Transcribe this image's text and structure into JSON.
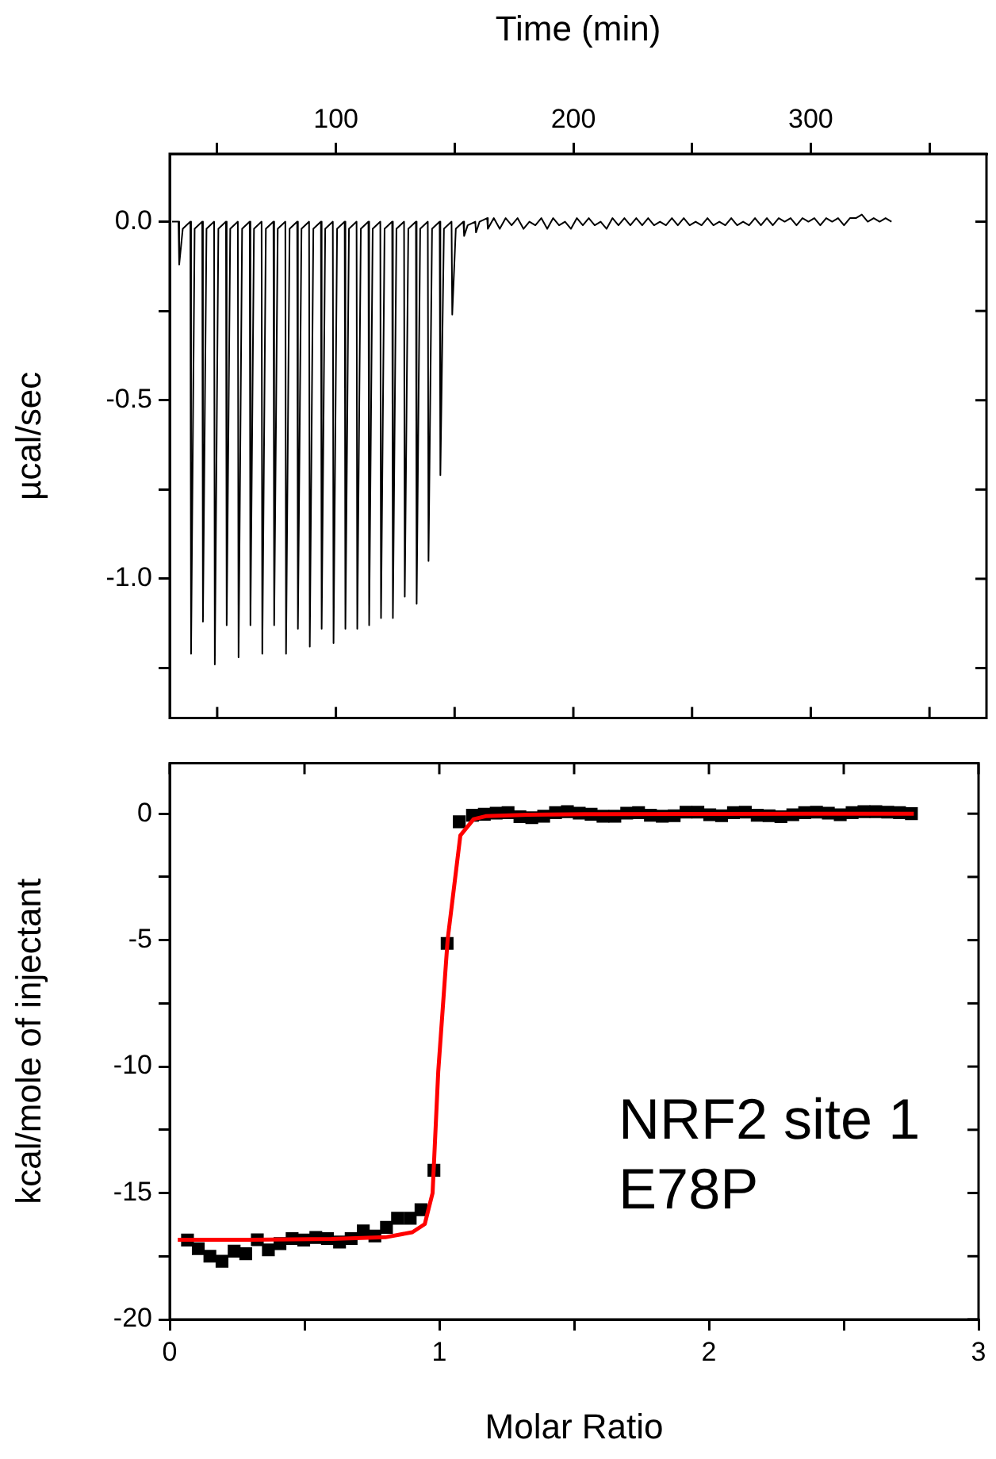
{
  "chart_data": [
    {
      "type": "line",
      "xlabel": "Time (min)",
      "ylabel": "µcal/sec",
      "xlim": [
        30,
        374
      ],
      "xticks": [
        {
          "value": 50,
          "label": null
        },
        100,
        {
          "value": 150,
          "label": null
        },
        200,
        {
          "value": 250,
          "label": null
        },
        300,
        {
          "value": 350,
          "label": null
        }
      ],
      "ylim": [
        -1.39,
        0.19
      ],
      "yticks": [
        {
          "value": 0,
          "label": "0.0"
        },
        {
          "value": -0.25,
          "label": null
        },
        {
          "value": -0.5,
          "label": "-0.5"
        },
        {
          "value": -0.75,
          "label": null
        },
        {
          "value": -1,
          "label": "-1.0"
        },
        {
          "value": -1.25,
          "label": null
        }
      ],
      "series": [
        {
          "color": "#000000",
          "marker": "none",
          "x": [
            31,
            33.7,
            34,
            35.5,
            38.7,
            39,
            40.5,
            43.7,
            44,
            45.5,
            48.7,
            49,
            50.5,
            53.7,
            54,
            55.5,
            58.7,
            59,
            60.5,
            63.7,
            64,
            65.5,
            68.7,
            69,
            70.5,
            73.7,
            74,
            75.5,
            78.7,
            79,
            80.5,
            83.7,
            84,
            85.5,
            88.7,
            89,
            90.5,
            93.7,
            94,
            95.5,
            98.7,
            99,
            100.5,
            103.7,
            104,
            105.5,
            108.7,
            109,
            110.5,
            113.7,
            114,
            115.5,
            118.7,
            119,
            120.5,
            123.7,
            124,
            125.5,
            128.7,
            129,
            130.5,
            133.7,
            134,
            135.5,
            138.7,
            139,
            140.5,
            143.7,
            144,
            145.5,
            148.7,
            149,
            150.5,
            153.7,
            154,
            155.5,
            158.7,
            159,
            160.5,
            163.7,
            164,
            166.5,
            169,
            171.5,
            174,
            176.5,
            179,
            181.5,
            184,
            186.5,
            189,
            191.5,
            194,
            196.5,
            199,
            201.5,
            204,
            206.5,
            209,
            211.5,
            214,
            216.5,
            219,
            221.5,
            224,
            226.5,
            229,
            231.5,
            234,
            236.5,
            239,
            241.5,
            244,
            246.5,
            249,
            251.5,
            254,
            256.5,
            259,
            261.5,
            264,
            266.5,
            269,
            271.5,
            274,
            276.5,
            279,
            281.5,
            284,
            286.5,
            289,
            291.5,
            294,
            296.5,
            299,
            301.5,
            304,
            306.5,
            309,
            311.5,
            314,
            316.5,
            319,
            321.5,
            324,
            326.5,
            329,
            331.5,
            334
          ],
          "values": [
            0,
            0,
            -0.12,
            -0.02,
            0,
            -1.21,
            -0.02,
            0,
            -1.12,
            -0.02,
            0,
            -1.24,
            -0.02,
            0,
            -1.13,
            -0.02,
            0,
            -1.22,
            -0.02,
            0,
            -1.13,
            -0.02,
            0,
            -1.21,
            -0.02,
            0,
            -1.13,
            -0.02,
            0,
            -1.21,
            -0.02,
            0,
            -1.14,
            -0.02,
            0,
            -1.19,
            -0.02,
            0,
            -1.14,
            -0.02,
            0,
            -1.18,
            -0.02,
            0,
            -1.14,
            -0.02,
            0,
            -1.14,
            -0.02,
            0,
            -1.13,
            -0.02,
            0,
            -1.11,
            -0.02,
            0,
            -1.11,
            -0.02,
            0,
            -1.05,
            -0.02,
            0,
            -1.07,
            -0.02,
            0,
            -0.95,
            -0.02,
            0,
            -0.71,
            -0.02,
            0,
            -0.26,
            -0.02,
            0,
            -0.04,
            -0.01,
            0,
            -0.03,
            0,
            0.01,
            -0.02,
            0.01,
            -0.02,
            0.01,
            -0.01,
            0.01,
            -0.02,
            0,
            -0.01,
            0.01,
            -0.02,
            0.01,
            -0.01,
            0,
            -0.02,
            0.01,
            -0.01,
            0.01,
            -0.01,
            0,
            -0.02,
            0.01,
            -0.01,
            0.01,
            -0.01,
            0.01,
            -0.01,
            0.01,
            -0.01,
            0,
            -0.01,
            0.01,
            -0.01,
            0.01,
            -0.01,
            0,
            -0.01,
            0.01,
            -0.01,
            0,
            -0.01,
            0.01,
            -0.01,
            0,
            -0.01,
            0.01,
            -0.01,
            0.01,
            -0.01,
            0.01,
            0,
            0.01,
            -0.01,
            0.01,
            0,
            0.01,
            -0.01,
            0.01,
            0,
            0.01,
            -0.01,
            0.01,
            0.01,
            0.02,
            0,
            0.01,
            0,
            0.01,
            0
          ]
        }
      ]
    },
    {
      "type": "scatter",
      "xlabel": "Molar Ratio",
      "ylabel": "kcal/mole of injectant",
      "xlim": [
        0,
        3
      ],
      "xticks": [
        0,
        {
          "value": 0.5,
          "label": null
        },
        1,
        {
          "value": 1.5,
          "label": null
        },
        2,
        {
          "value": 2.5,
          "label": null
        },
        3
      ],
      "ylim": [
        -20,
        2
      ],
      "yticks": [
        0,
        {
          "value": -2.5,
          "label": null
        },
        -5,
        {
          "value": -7.5,
          "label": null
        },
        -10,
        {
          "value": -12.5,
          "label": null
        },
        -15,
        {
          "value": -17.5,
          "label": null
        },
        -20
      ],
      "marker": "square",
      "annotations": [
        "NRF2 site 1",
        "E78P"
      ],
      "series": [
        {
          "color": "#000000",
          "x": [
            0.066,
            0.106,
            0.149,
            0.194,
            0.239,
            0.282,
            0.325,
            0.366,
            0.409,
            0.454,
            0.497,
            0.542,
            0.585,
            0.63,
            0.673,
            0.718,
            0.761,
            0.804,
            0.845,
            0.892,
            0.932,
            0.98,
            1.029,
            1.074,
            1.123,
            1.167,
            1.211,
            1.255,
            1.299,
            1.343,
            1.387,
            1.431,
            1.475,
            1.519,
            1.563,
            1.607,
            1.651,
            1.695,
            1.739,
            1.783,
            1.827,
            1.871,
            1.915,
            1.959,
            2.003,
            2.047,
            2.091,
            2.135,
            2.179,
            2.223,
            2.267,
            2.311,
            2.355,
            2.399,
            2.443,
            2.487,
            2.531,
            2.575,
            2.619,
            2.663,
            2.707,
            2.751
          ],
          "values": [
            -16.86,
            -17.2,
            -17.5,
            -17.7,
            -17.3,
            -17.4,
            -16.85,
            -17.25,
            -17.0,
            -16.8,
            -16.86,
            -16.76,
            -16.8,
            -16.94,
            -16.8,
            -16.5,
            -16.7,
            -16.36,
            -16.0,
            -16.0,
            -15.66,
            -14.1,
            -5.13,
            -0.32,
            -0.06,
            -0.02,
            0.02,
            0.04,
            -0.12,
            -0.16,
            -0.1,
            0.04,
            0.08,
            0.02,
            -0.02,
            -0.1,
            -0.1,
            0.02,
            0.04,
            -0.06,
            -0.1,
            -0.08,
            0.06,
            0.06,
            -0.04,
            -0.08,
            0.04,
            0.06,
            -0.06,
            -0.08,
            -0.12,
            -0.04,
            0.04,
            0.06,
            0.02,
            -0.04,
            0.04,
            0.08,
            0.08,
            0.06,
            0.04,
            0.0
          ]
        },
        {
          "type": "line",
          "color": "#ff0000",
          "marker": "none",
          "x": [
            0.03,
            0.3,
            0.6,
            0.8,
            0.9,
            0.946,
            0.975,
            0.996,
            1.031,
            1.078,
            1.127,
            1.172,
            1.33,
            1.54,
            2.0,
            2.76
          ],
          "values": [
            -16.85,
            -16.85,
            -16.82,
            -16.75,
            -16.55,
            -16.23,
            -15.0,
            -10.2,
            -4.97,
            -0.86,
            -0.22,
            -0.1,
            -0.04,
            -0.02,
            -0.01,
            0.0
          ]
        }
      ]
    }
  ]
}
